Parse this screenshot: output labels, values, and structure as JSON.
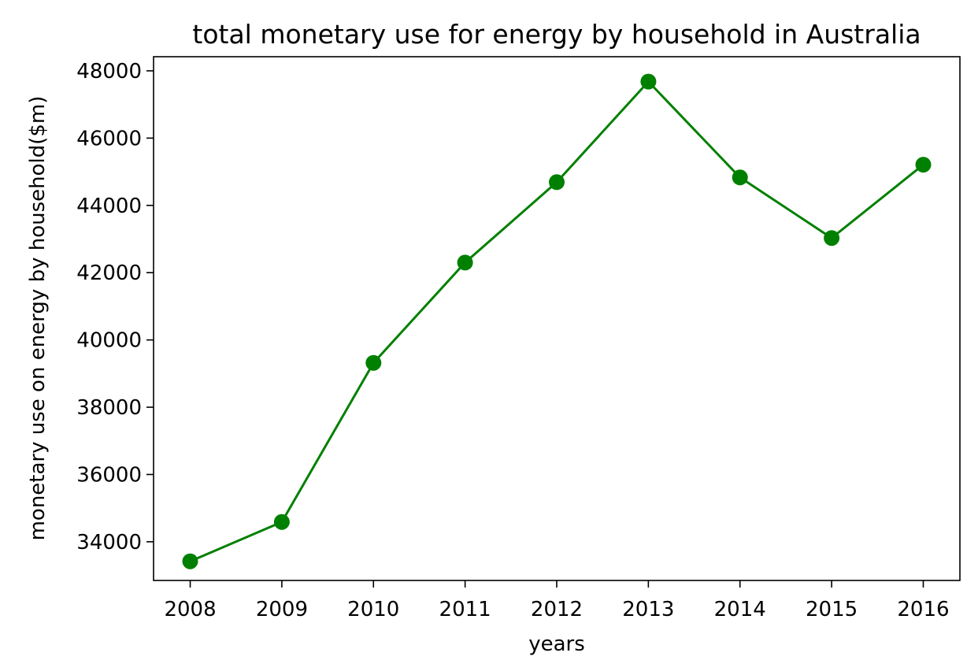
{
  "chart_data": {
    "type": "line",
    "title": "total monetary use for energy by household in Australia",
    "xlabel": "years",
    "ylabel": "monetary use on energy by household($m)",
    "x": [
      2008,
      2009,
      2010,
      2011,
      2012,
      2013,
      2014,
      2015,
      2016
    ],
    "series": [
      {
        "values": [
          33420,
          34590,
          39320,
          42300,
          44690,
          47680,
          44830,
          43030,
          45210
        ],
        "color": "#008000",
        "marker": "circle"
      }
    ],
    "x_ticks": [
      "2008",
      "2009",
      "2010",
      "2011",
      "2012",
      "2013",
      "2014",
      "2015",
      "2016"
    ],
    "y_ticks": [
      "34000",
      "36000",
      "38000",
      "40000",
      "42000",
      "44000",
      "46000",
      "48000"
    ],
    "xlim": [
      2007.6,
      2016.4
    ],
    "ylim": [
      32850,
      48420
    ],
    "grid": false,
    "legend": "none"
  }
}
